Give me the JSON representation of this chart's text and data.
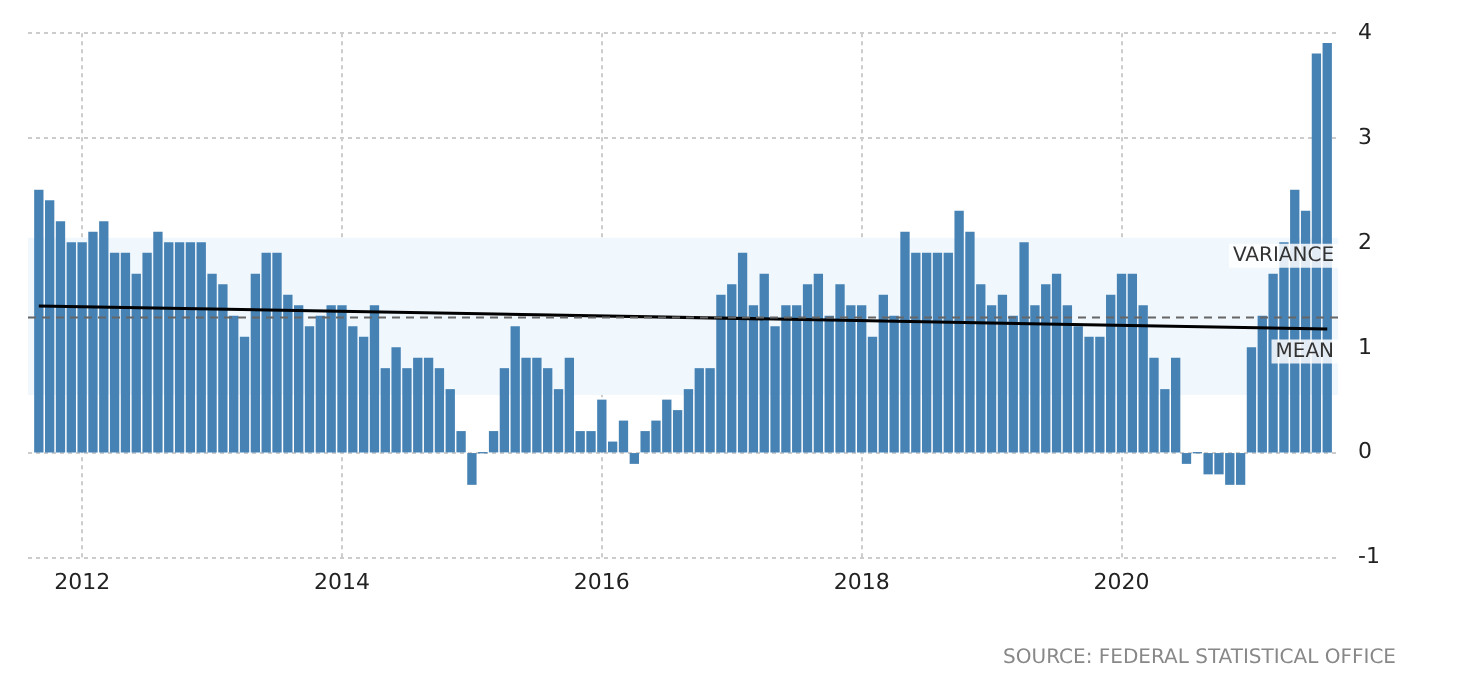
{
  "chart_data": {
    "type": "bar",
    "x": [
      "2011-09",
      "2011-10",
      "2011-11",
      "2011-12",
      "2012-01",
      "2012-02",
      "2012-03",
      "2012-04",
      "2012-05",
      "2012-06",
      "2012-07",
      "2012-08",
      "2012-09",
      "2012-10",
      "2012-11",
      "2012-12",
      "2013-01",
      "2013-02",
      "2013-03",
      "2013-04",
      "2013-05",
      "2013-06",
      "2013-07",
      "2013-08",
      "2013-09",
      "2013-10",
      "2013-11",
      "2013-12",
      "2014-01",
      "2014-02",
      "2014-03",
      "2014-04",
      "2014-05",
      "2014-06",
      "2014-07",
      "2014-08",
      "2014-09",
      "2014-10",
      "2014-11",
      "2014-12",
      "2015-01",
      "2015-02",
      "2015-03",
      "2015-04",
      "2015-05",
      "2015-06",
      "2015-07",
      "2015-08",
      "2015-09",
      "2015-10",
      "2015-11",
      "2015-12",
      "2016-01",
      "2016-02",
      "2016-03",
      "2016-04",
      "2016-05",
      "2016-06",
      "2016-07",
      "2016-08",
      "2016-09",
      "2016-10",
      "2016-11",
      "2016-12",
      "2017-01",
      "2017-02",
      "2017-03",
      "2017-04",
      "2017-05",
      "2017-06",
      "2017-07",
      "2017-08",
      "2017-09",
      "2017-10",
      "2017-11",
      "2017-12",
      "2018-01",
      "2018-02",
      "2018-03",
      "2018-04",
      "2018-05",
      "2018-06",
      "2018-07",
      "2018-08",
      "2018-09",
      "2018-10",
      "2018-11",
      "2018-12",
      "2019-01",
      "2019-02",
      "2019-03",
      "2019-04",
      "2019-05",
      "2019-06",
      "2019-07",
      "2019-08",
      "2019-09",
      "2019-10",
      "2019-11",
      "2019-12",
      "2020-01",
      "2020-02",
      "2020-03",
      "2020-04",
      "2020-05",
      "2020-06",
      "2020-07",
      "2020-08",
      "2020-09",
      "2020-10",
      "2020-11",
      "2020-12",
      "2021-01",
      "2021-02",
      "2021-03",
      "2021-04",
      "2021-05",
      "2021-06",
      "2021-07",
      "2021-08"
    ],
    "series": [
      {
        "color": "#4682b4",
        "values": [
          2.5,
          2.4,
          2.2,
          2.0,
          2.0,
          2.1,
          2.2,
          1.9,
          1.9,
          1.7,
          1.9,
          2.1,
          2.0,
          2.0,
          2.0,
          2.0,
          1.7,
          1.6,
          1.3,
          1.1,
          1.7,
          1.9,
          1.9,
          1.5,
          1.4,
          1.2,
          1.3,
          1.4,
          1.4,
          1.2,
          1.1,
          1.4,
          0.8,
          1.0,
          0.8,
          0.9,
          0.9,
          0.8,
          0.6,
          0.2,
          -0.3,
          0.0,
          0.2,
          0.8,
          1.2,
          0.9,
          0.9,
          0.8,
          0.6,
          0.9,
          0.2,
          0.2,
          0.5,
          0.1,
          0.3,
          -0.1,
          0.2,
          0.3,
          0.5,
          0.4,
          0.6,
          0.8,
          0.8,
          1.5,
          1.6,
          1.9,
          1.4,
          1.7,
          1.2,
          1.4,
          1.4,
          1.6,
          1.7,
          1.3,
          1.6,
          1.4,
          1.4,
          1.1,
          1.5,
          1.3,
          2.1,
          1.9,
          1.9,
          1.9,
          1.9,
          2.3,
          2.1,
          1.6,
          1.4,
          1.5,
          1.3,
          2.0,
          1.4,
          1.6,
          1.7,
          1.4,
          1.2,
          1.1,
          1.1,
          1.5,
          1.7,
          1.7,
          1.4,
          0.9,
          0.6,
          0.9,
          -0.1,
          0.0,
          -0.2,
          -0.2,
          -0.3,
          -0.3,
          1.0,
          1.3,
          1.7,
          2.0,
          2.5,
          2.3,
          3.8,
          3.9
        ]
      },
      {
        "type": "line",
        "color": "#000000",
        "x": [
          "2011-09",
          "2021-08"
        ],
        "values": [
          1.4,
          1.18
        ]
      }
    ],
    "xlim": [
      "2011-08",
      "2021-09"
    ],
    "xticks": [
      {
        "value": "2012-01",
        "label": "2012"
      },
      {
        "value": "2014-01",
        "label": "2014"
      },
      {
        "value": "2016-01",
        "label": "2016"
      },
      {
        "value": "2018-01",
        "label": "2018"
      },
      {
        "value": "2020-01",
        "label": "2020"
      }
    ],
    "ylim": [
      -1,
      4
    ],
    "yticks": [
      -1,
      0,
      1,
      2,
      3,
      4
    ],
    "grid": true,
    "legend": false,
    "bands": [
      {
        "axis": "y",
        "from": 0.55,
        "to": 2.05,
        "label": "VARIANCE",
        "color": "#f0f7fd"
      }
    ],
    "ref_lines": [
      {
        "axis": "y",
        "value": 1.29,
        "label": "MEAN",
        "color": "#666666",
        "line_style": "dashed"
      }
    ],
    "annotations": [
      "SOURCE: FEDERAL STATISTICAL OFFICE"
    ]
  }
}
